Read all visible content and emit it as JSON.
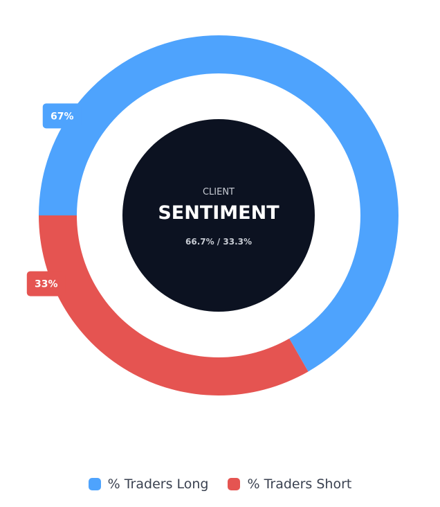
{
  "chart_data": {
    "type": "pie",
    "variant": "donut",
    "categories": [
      "% Traders Long",
      "% Traders Short"
    ],
    "values": [
      66.7,
      33.3
    ],
    "colors": [
      "#4ea3fd",
      "#e55451"
    ],
    "data_labels": [
      "67%",
      "33%"
    ],
    "center": {
      "top": "CLIENT",
      "title": "SENTIMENT",
      "sub": "66.7% / 33.3%"
    },
    "legend_position": "bottom"
  },
  "colors": {
    "center_fill": "#0c1221",
    "center_text": "#ffffff",
    "center_muted": "#c7cbd3"
  }
}
